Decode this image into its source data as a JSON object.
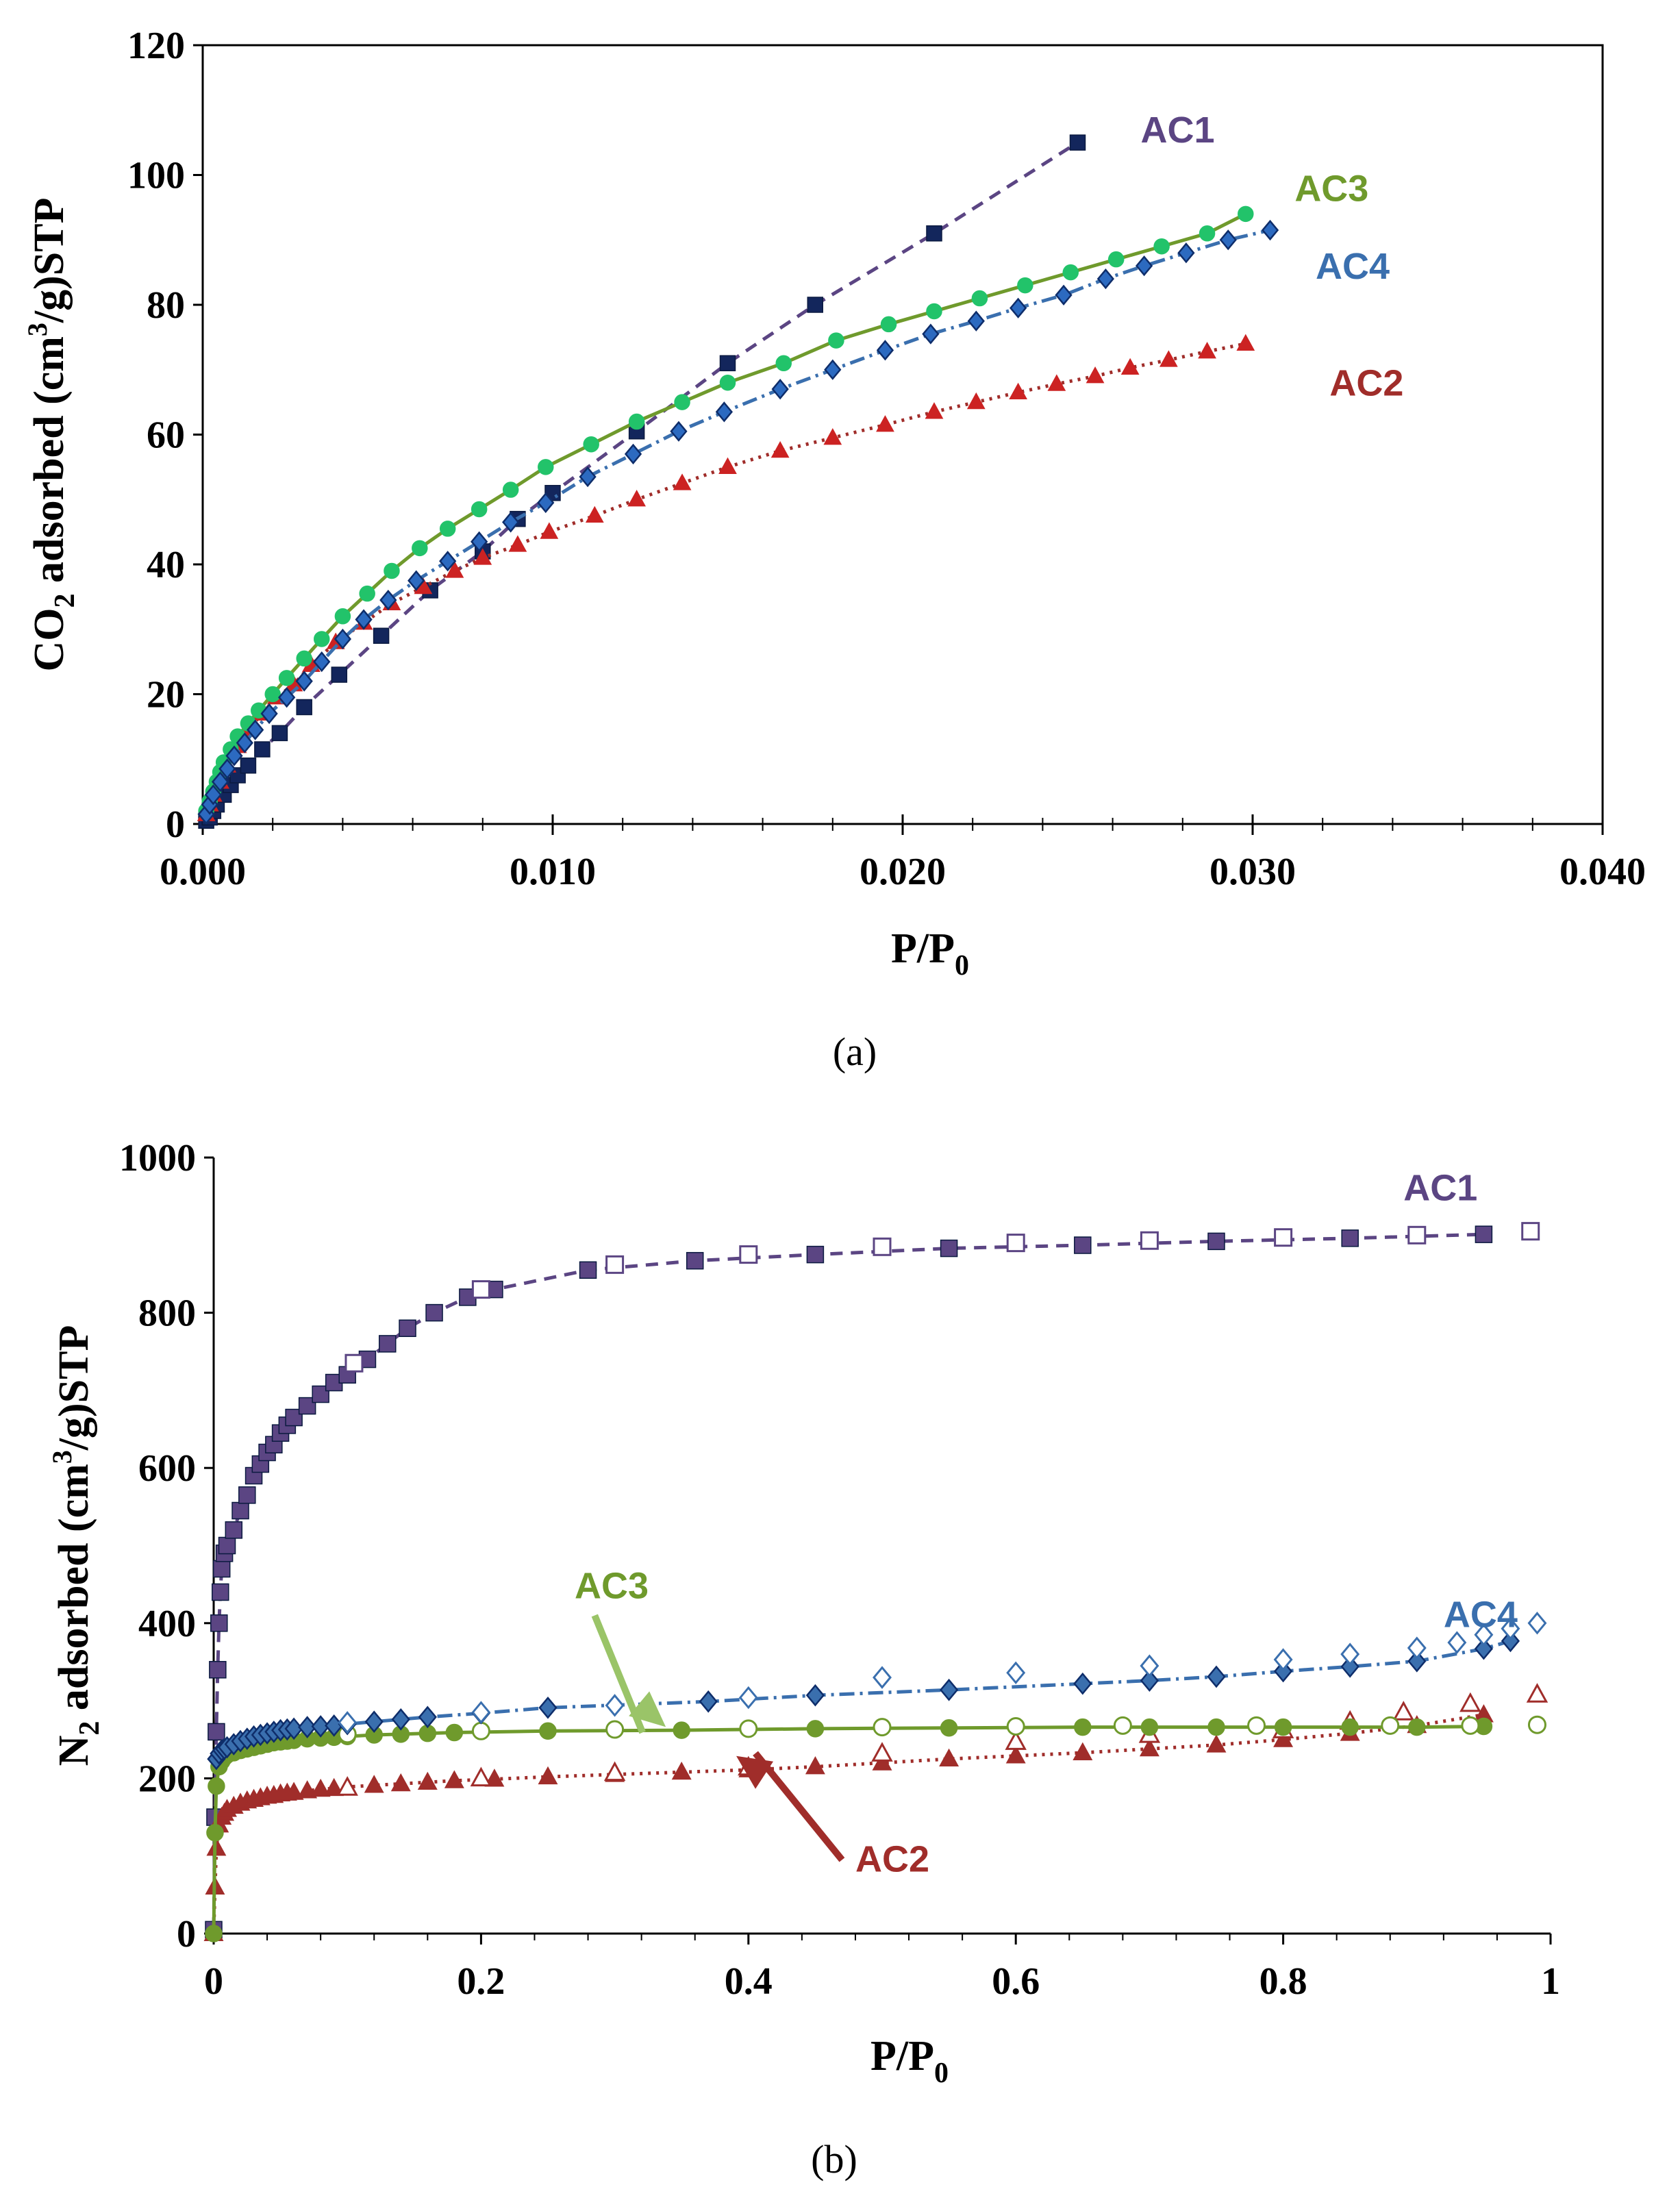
{
  "chart_data": [
    {
      "id": "a",
      "type": "scatter",
      "caption": "(a)",
      "xlabel": "P/P",
      "xlabel_sub": "0",
      "ylabel": {
        "pre": "CO",
        "sub": "2",
        "mid": " adsorbed (cm",
        "sup": "3",
        "post": "/g)STP"
      },
      "xlim": [
        0,
        0.04
      ],
      "ylim": [
        0,
        120
      ],
      "xticks": [
        0,
        0.01,
        0.02,
        0.03,
        0.04
      ],
      "xtick_labels": [
        "0.000",
        "0.010",
        "0.020",
        "0.030",
        "0.040"
      ],
      "yticks": [
        0,
        20,
        40,
        60,
        80,
        100,
        120
      ],
      "ytick_labels": [
        "0",
        "20",
        "40",
        "60",
        "80",
        "100",
        "120"
      ],
      "series": [
        {
          "name": "AC1",
          "color": "#5b4583",
          "line_color": "#5b4583",
          "marker_color": "#13265c",
          "marker": "square",
          "dash": "18,12",
          "label_pos": [
            0.0268,
            105
          ],
          "x": [
            0.0001,
            0.0002,
            0.0003,
            0.0004,
            0.0006,
            0.0008,
            0.001,
            0.0013,
            0.0017,
            0.0022,
            0.0029,
            0.0039,
            0.0051,
            0.0065,
            0.008,
            0.009,
            0.01,
            0.0124,
            0.015,
            0.0175,
            0.0209,
            0.025
          ],
          "y": [
            0.5,
            1,
            2,
            3,
            4.5,
            6,
            7.5,
            9,
            11.5,
            14,
            18,
            23,
            29,
            36,
            42,
            47,
            51,
            60.5,
            71,
            80,
            91,
            105
          ]
        },
        {
          "name": "AC2",
          "color": "#a02d2a",
          "line_color": "#a02d2a",
          "marker_color": "#cc2222",
          "marker": "triangle",
          "dash": "4,8",
          "label_pos": [
            0.0322,
            66
          ],
          "x": [
            0.0001,
            0.0002,
            0.0003,
            0.0005,
            0.0007,
            0.001,
            0.0013,
            0.0017,
            0.0021,
            0.0026,
            0.0031,
            0.0038,
            0.0046,
            0.0054,
            0.0063,
            0.0072,
            0.008,
            0.009,
            0.0099,
            0.0112,
            0.0124,
            0.0137,
            0.015,
            0.0165,
            0.018,
            0.0195,
            0.0209,
            0.0221,
            0.0233,
            0.0244,
            0.0255,
            0.0265,
            0.0276,
            0.0287,
            0.0298
          ],
          "y": [
            1.5,
            3,
            4.5,
            6.5,
            9,
            12,
            14.5,
            17,
            19.5,
            21.5,
            24.5,
            28,
            31,
            34,
            36.5,
            39,
            41,
            43,
            45,
            47.5,
            50,
            52.5,
            55,
            57.5,
            59.5,
            61.5,
            63.5,
            65,
            66.5,
            67.8,
            69,
            70.3,
            71.5,
            72.8,
            74
          ]
        },
        {
          "name": "AC3",
          "color": "#6f9a2c",
          "line_color": "#6f9a2c",
          "marker_color": "#22c36a",
          "marker": "circle",
          "dash": "",
          "label_pos": [
            0.0312,
            96
          ],
          "x": [
            0.0001,
            0.0002,
            0.0003,
            0.0004,
            0.0005,
            0.0006,
            0.0008,
            0.001,
            0.0013,
            0.0016,
            0.002,
            0.0024,
            0.0029,
            0.0034,
            0.004,
            0.0047,
            0.0054,
            0.0062,
            0.007,
            0.0079,
            0.0088,
            0.0098,
            0.0111,
            0.0124,
            0.0137,
            0.015,
            0.0166,
            0.0181,
            0.0196,
            0.0209,
            0.0222,
            0.0235,
            0.0248,
            0.0261,
            0.0274,
            0.0287,
            0.0298
          ],
          "y": [
            2,
            3.5,
            5,
            6.5,
            8,
            9.5,
            11.5,
            13.5,
            15.5,
            17.5,
            20,
            22.5,
            25.5,
            28.5,
            32,
            35.5,
            39,
            42.5,
            45.5,
            48.5,
            51.5,
            55,
            58.5,
            62,
            65,
            68,
            71,
            74.5,
            77,
            79,
            81,
            83,
            85,
            87,
            89,
            91,
            94
          ]
        },
        {
          "name": "AC4",
          "color": "#3a6fae",
          "line_color": "#3a6fae",
          "marker_color": "#2c6ac0",
          "marker": "diamond",
          "dash": "22,8,4,8",
          "label_pos": [
            0.0318,
            84
          ],
          "x": [
            0.0001,
            0.0002,
            0.0003,
            0.0005,
            0.0007,
            0.0009,
            0.0012,
            0.0015,
            0.0019,
            0.0024,
            0.0029,
            0.0034,
            0.004,
            0.0046,
            0.0053,
            0.0061,
            0.007,
            0.0079,
            0.0088,
            0.0098,
            0.011,
            0.0123,
            0.0136,
            0.0149,
            0.0165,
            0.018,
            0.0195,
            0.0208,
            0.0221,
            0.0233,
            0.0246,
            0.0258,
            0.0269,
            0.0281,
            0.0293,
            0.0305
          ],
          "y": [
            1.5,
            3,
            4.5,
            6.5,
            8.5,
            10.5,
            12.5,
            14.5,
            17,
            19.5,
            22,
            25,
            28.5,
            31.5,
            34.5,
            37.5,
            40.5,
            43.5,
            46.5,
            49.5,
            53.5,
            57,
            60.5,
            63.5,
            67,
            70,
            73,
            75.5,
            77.5,
            79.5,
            81.5,
            84,
            86,
            88,
            90,
            91.5
          ]
        }
      ]
    },
    {
      "id": "b",
      "type": "scatter",
      "caption": "(b)",
      "xlabel": "P/P",
      "xlabel_sub": "0",
      "ylabel": {
        "pre": "N",
        "sub": "2",
        "mid": " adsorbed (cm",
        "sup": "3",
        "post": "/g)STP"
      },
      "xlim": [
        0,
        1
      ],
      "ylim": [
        0,
        1000
      ],
      "xticks": [
        0,
        0.2,
        0.4,
        0.6,
        0.8,
        1
      ],
      "xtick_labels": [
        "0",
        "0.2",
        "0.4",
        "0.6",
        "0.8",
        "1"
      ],
      "yticks": [
        0,
        200,
        400,
        600,
        800,
        1000
      ],
      "ytick_labels": [
        "0",
        "200",
        "400",
        "600",
        "800",
        "1000"
      ],
      "series": [
        {
          "name": "AC1",
          "color": "#5b4583",
          "line_color": "#5b4583",
          "marker_color": "#5b4583",
          "marker": "square",
          "dash": "18,12",
          "label_pos": [
            0.89,
            945
          ],
          "adsorption": {
            "x": [
              0.0,
              0.001,
              0.002,
              0.003,
              0.004,
              0.005,
              0.006,
              0.008,
              0.01,
              0.015,
              0.02,
              0.025,
              0.03,
              0.035,
              0.04,
              0.045,
              0.05,
              0.055,
              0.06,
              0.07,
              0.08,
              0.09,
              0.1,
              0.115,
              0.13,
              0.145,
              0.165,
              0.19,
              0.21,
              0.28,
              0.36,
              0.45,
              0.55,
              0.65,
              0.75,
              0.85,
              0.95
            ],
            "y": [
              5,
              150,
              260,
              340,
              400,
              440,
              470,
              490,
              500,
              520,
              545,
              565,
              590,
              605,
              620,
              630,
              645,
              655,
              665,
              680,
              695,
              710,
              720,
              740,
              760,
              780,
              800,
              820,
              830,
              855,
              867,
              875,
              883,
              887,
              892,
              896,
              901
            ]
          },
          "desorption": {
            "x": [
              0.3,
              0.4,
              0.5,
              0.6,
              0.7,
              0.8,
              0.9,
              0.985,
              0.2,
              0.105
            ],
            "y": [
              862,
              875,
              885,
              890,
              893,
              897,
              900,
              905,
              830,
              735
            ]
          }
        },
        {
          "name": "AC2",
          "color": "#a02d2a",
          "line_color": "#a02d2a",
          "marker_color": "#a02d2a",
          "marker": "triangle",
          "dash": "4,8",
          "label_pos": [
            0.48,
            80
          ],
          "adsorption": {
            "x": [
              0.0,
              0.001,
              0.002,
              0.004,
              0.006,
              0.008,
              0.01,
              0.015,
              0.02,
              0.025,
              0.03,
              0.035,
              0.04,
              0.045,
              0.05,
              0.055,
              0.06,
              0.07,
              0.08,
              0.09,
              0.1,
              0.12,
              0.14,
              0.16,
              0.18,
              0.21,
              0.25,
              0.3,
              0.35,
              0.4,
              0.45,
              0.5,
              0.55,
              0.6,
              0.65,
              0.7,
              0.75,
              0.8,
              0.85,
              0.9,
              0.95
            ],
            "y": [
              0,
              60,
              110,
              140,
              150,
              155,
              160,
              164,
              168,
              171,
              173,
              175,
              177,
              178,
              180,
              181,
              182,
              184,
              186,
              187,
              189,
              191,
              193,
              195,
              197,
              199,
              202,
              205,
              208,
              211,
              215,
              220,
              225,
              229,
              233,
              238,
              243,
              250,
              258,
              268,
              282
            ]
          },
          "desorption": {
            "x": [
              0.3,
              0.4,
              0.5,
              0.6,
              0.7,
              0.8,
              0.85,
              0.89,
              0.94,
              0.99,
              0.2,
              0.1
            ],
            "y": [
              207,
              214,
              232,
              247,
              256,
              262,
              273,
              285,
              296,
              308,
              200,
              188
            ]
          }
        },
        {
          "name": "AC3",
          "color": "#6f9a2c",
          "line_color": "#6f9a2c",
          "marker_color": "#6f9a2c",
          "marker": "circle",
          "dash": "",
          "label_pos": [
            0.27,
            432
          ],
          "adsorption": {
            "x": [
              0.0,
              0.001,
              0.002,
              0.004,
              0.006,
              0.008,
              0.01,
              0.015,
              0.02,
              0.025,
              0.03,
              0.035,
              0.04,
              0.045,
              0.05,
              0.055,
              0.06,
              0.07,
              0.08,
              0.09,
              0.1,
              0.12,
              0.14,
              0.16,
              0.18,
              0.25,
              0.35,
              0.45,
              0.55,
              0.65,
              0.7,
              0.75,
              0.8,
              0.85,
              0.9,
              0.95
            ],
            "y": [
              0,
              130,
              190,
              215,
              222,
              227,
              230,
              233,
              236,
              238,
              240,
              242,
              244,
              246,
              247,
              248,
              249,
              251,
              252,
              253,
              254,
              256,
              257,
              258,
              259,
              261,
              262,
              264,
              265,
              266,
              266,
              266,
              266,
              266,
              266,
              267
            ]
          },
          "desorption": {
            "x": [
              0.1,
              0.2,
              0.3,
              0.4,
              0.5,
              0.6,
              0.68,
              0.78,
              0.88,
              0.94,
              0.99
            ],
            "y": [
              257,
              261,
              263,
              264,
              266,
              267,
              268,
              268,
              268,
              268,
              269
            ]
          }
        },
        {
          "name": "AC4",
          "color": "#3a6fae",
          "line_color": "#3a6fae",
          "marker_color": "#3a6fae",
          "marker": "diamond",
          "dash": "22,8,4,8",
          "label_pos": [
            0.92,
            395
          ],
          "adsorption": {
            "x": [
              0.002,
              0.004,
              0.006,
              0.008,
              0.01,
              0.015,
              0.02,
              0.025,
              0.03,
              0.035,
              0.04,
              0.045,
              0.05,
              0.055,
              0.06,
              0.07,
              0.08,
              0.09,
              0.1,
              0.12,
              0.14,
              0.16,
              0.2,
              0.25,
              0.37,
              0.45,
              0.55,
              0.65,
              0.7,
              0.75,
              0.8,
              0.85,
              0.9,
              0.95,
              0.97
            ],
            "y": [
              225,
              232,
              236,
              238,
              240,
              244,
              248,
              251,
              254,
              256,
              258,
              260,
              262,
              263,
              264,
              266,
              267,
              268,
              270,
              273,
              276,
              279,
              284,
              291,
              299,
              307,
              314,
              322,
              326,
              331,
              338,
              344,
              351,
              367,
              377
            ]
          },
          "desorption": {
            "x": [
              0.1,
              0.2,
              0.3,
              0.4,
              0.5,
              0.6,
              0.7,
              0.8,
              0.85,
              0.9,
              0.93,
              0.95,
              0.97,
              0.99
            ],
            "y": [
              272,
              285,
              294,
              304,
              330,
              336,
              345,
              353,
              360,
              368,
              375,
              385,
              393,
              400
            ]
          }
        }
      ]
    }
  ]
}
